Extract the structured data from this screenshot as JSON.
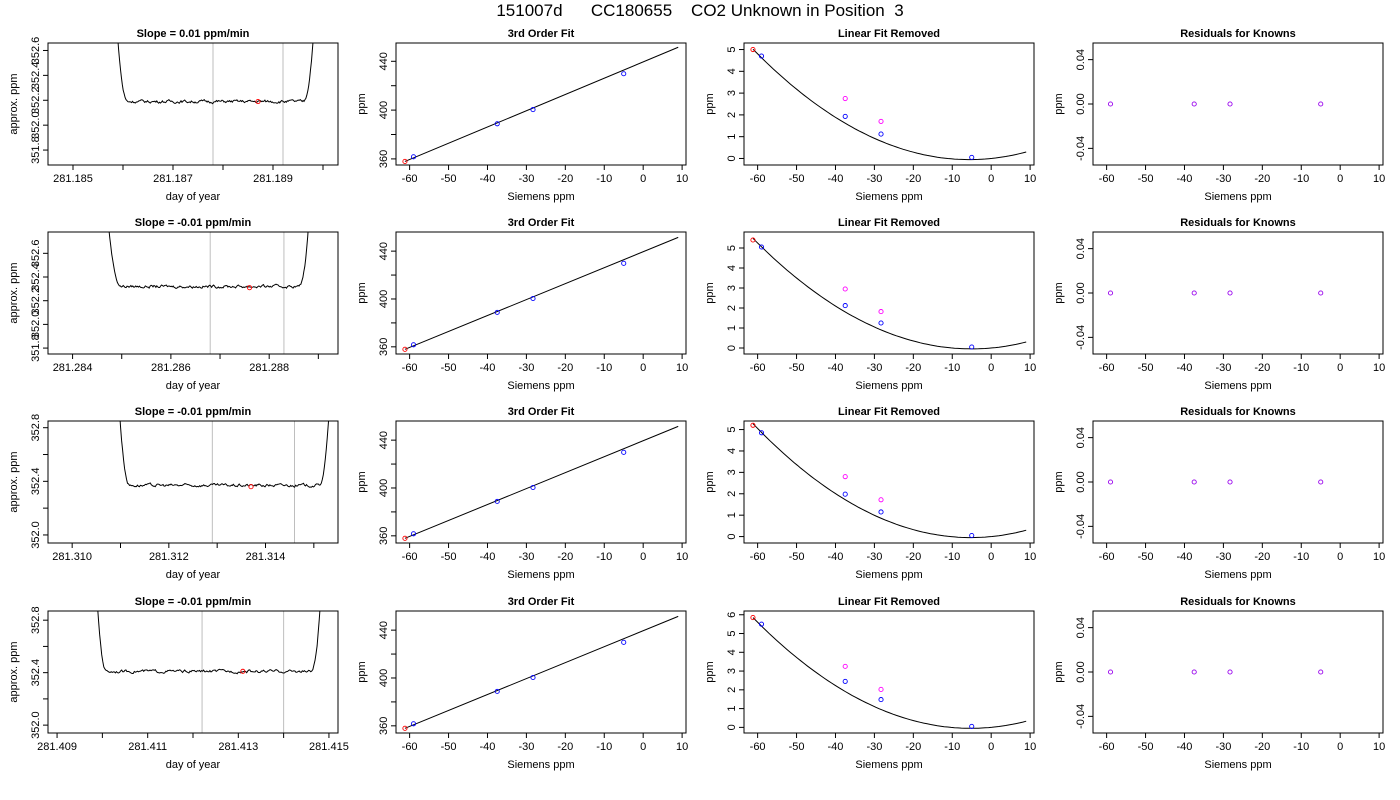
{
  "page_title": "151007d      CC180655    CO2 Unknown in Position  3",
  "colors": {
    "axis": "#000000",
    "frame": "#000000",
    "vline": "#bebebe",
    "known_point": "#0000ff",
    "unknown_point": "#ff00ff",
    "ref_point": "#ff0000",
    "residual_point": "#9900ee"
  },
  "chart_data": [
    {
      "row": 1,
      "panel": "timeseries",
      "type": "line",
      "title": "Slope =  0.01  ppm/min",
      "xlabel": "day of year",
      "ylabel": "approx. ppm",
      "xlim": [
        281.1845,
        281.1903
      ],
      "ylim": [
        351.68,
        352.66
      ],
      "xticks": [
        281.185,
        281.186,
        281.187,
        281.188,
        281.189,
        281.19
      ],
      "xtick_labels": [
        "281.185",
        "",
        "281.187",
        "",
        "281.189",
        ""
      ],
      "yticks": [
        351.8,
        352.0,
        352.2,
        352.4,
        352.6
      ],
      "ytick_labels": [
        "351.8",
        "352.0",
        "352.2",
        "352.4",
        "352.6"
      ],
      "plateau": 352.19,
      "x_start": 281.1858,
      "x_end": 281.1899,
      "rise_end_left": 281.1861,
      "rise_start_right": 281.1896,
      "vlines": [
        281.1878,
        281.1892
      ],
      "marker_x": 281.1887,
      "marker_y": 352.19
    },
    {
      "row": 1,
      "panel": "fit",
      "type": "scatter",
      "title": "3rd Order Fit",
      "xlabel": "Siemens ppm",
      "ylabel": "ppm",
      "xlim": [
        -63.5,
        11
      ],
      "ylim": [
        355,
        455
      ],
      "xticks": [
        -60,
        -50,
        -40,
        -30,
        -20,
        -10,
        0,
        10
      ],
      "xtick_labels": [
        "-60",
        "-50",
        "-40",
        "-30",
        "-20",
        "-10",
        "0",
        "10"
      ],
      "yticks": [
        360,
        380,
        400,
        420,
        440
      ],
      "ytick_labels": [
        "360",
        "",
        "400",
        "",
        "440"
      ],
      "line": {
        "x": [
          -61.2,
          9
        ],
        "y": [
          357.9,
          451.5
        ]
      },
      "knowns": [
        {
          "x": -59,
          "y": 361.7
        },
        {
          "x": -37.5,
          "y": 388.8
        },
        {
          "x": -28.3,
          "y": 400.4
        },
        {
          "x": -5,
          "y": 429.8
        }
      ],
      "reference": [
        {
          "x": -61.2,
          "y": 357.9
        }
      ]
    },
    {
      "row": 1,
      "panel": "linear_removed",
      "type": "scatter",
      "title": "Linear Fit Removed",
      "xlabel": "Siemens ppm",
      "ylabel": "ppm",
      "xlim": [
        -63.5,
        11
      ],
      "ylim": [
        -0.3,
        5.3
      ],
      "xticks": [
        -60,
        -50,
        -40,
        -30,
        -20,
        -10,
        0,
        10
      ],
      "xtick_labels": [
        "-60",
        "-50",
        "-40",
        "-30",
        "-20",
        "-10",
        "0",
        "10"
      ],
      "yticks": [
        0,
        1,
        2,
        3,
        4,
        5
      ],
      "ytick_labels": [
        "0",
        "1",
        "2",
        "3",
        "4",
        "5"
      ],
      "curve_coeffs": [
        0,
        0.0184,
        0.00164
      ],
      "knowns": [
        {
          "x": -59,
          "y": 4.7
        },
        {
          "x": -37.5,
          "y": 1.93
        },
        {
          "x": -28.3,
          "y": 1.12
        },
        {
          "x": -5,
          "y": 0.05
        }
      ],
      "unknowns": [
        {
          "x": -37.5,
          "y": 2.75
        },
        {
          "x": -28.3,
          "y": 1.7
        }
      ],
      "reference": [
        {
          "x": -61.2,
          "y": 5.0
        }
      ]
    },
    {
      "row": 1,
      "panel": "residuals",
      "type": "scatter",
      "title": "Residuals for Knowns",
      "xlabel": "Siemens ppm",
      "ylabel": "ppm",
      "xlim": [
        -63.5,
        11
      ],
      "ylim": [
        -0.055,
        0.055
      ],
      "xticks": [
        -60,
        -50,
        -40,
        -30,
        -20,
        -10,
        0,
        10
      ],
      "xtick_labels": [
        "-60",
        "-50",
        "-40",
        "-30",
        "-20",
        "-10",
        "0",
        "10"
      ],
      "yticks": [
        -0.04,
        0,
        0.04
      ],
      "ytick_labels": [
        "-0.04",
        "0.00",
        "0.04"
      ],
      "points": [
        {
          "x": -59,
          "y": 0
        },
        {
          "x": -37.5,
          "y": 0
        },
        {
          "x": -28.3,
          "y": 0
        },
        {
          "x": -5,
          "y": 0
        }
      ]
    },
    {
      "row": 2,
      "panel": "timeseries",
      "type": "line",
      "title": "Slope =  -0.01  ppm/min",
      "xlabel": "day of year",
      "ylabel": "approx. ppm",
      "xlim": [
        281.2835,
        281.2894
      ],
      "ylim": [
        351.75,
        352.78
      ],
      "xticks": [
        281.284,
        281.285,
        281.286,
        281.287,
        281.288,
        281.289
      ],
      "xtick_labels": [
        "281.284",
        "",
        "281.286",
        "",
        "281.288",
        ""
      ],
      "yticks": [
        351.8,
        352.0,
        352.2,
        352.4,
        352.6
      ],
      "ytick_labels": [
        "351.8",
        "352.0",
        "352.2",
        "352.4",
        "352.6"
      ],
      "plateau": 352.32,
      "x_start": 281.2846,
      "x_end": 281.2889,
      "rise_end_left": 281.285,
      "rise_start_right": 281.2886,
      "vlines": [
        281.2868,
        281.2883
      ],
      "marker_x": 281.2876,
      "marker_y": 352.31
    },
    {
      "row": 2,
      "panel": "fit",
      "type": "scatter",
      "title": "3rd Order Fit",
      "xlabel": "Siemens ppm",
      "ylabel": "ppm",
      "xlim": [
        -63.5,
        11
      ],
      "ylim": [
        354,
        456
      ],
      "xticks": [
        -60,
        -50,
        -40,
        -30,
        -20,
        -10,
        0,
        10
      ],
      "xtick_labels": [
        "-60",
        "-50",
        "-40",
        "-30",
        "-20",
        "-10",
        "0",
        "10"
      ],
      "yticks": [
        360,
        380,
        400,
        420,
        440
      ],
      "ytick_labels": [
        "360",
        "",
        "400",
        "",
        "440"
      ],
      "line": {
        "x": [
          -61.2,
          9
        ],
        "y": [
          357.9,
          451.5
        ]
      },
      "knowns": [
        {
          "x": -59,
          "y": 361.7
        },
        {
          "x": -37.5,
          "y": 388.8
        },
        {
          "x": -28.3,
          "y": 400.4
        },
        {
          "x": -5,
          "y": 429.8
        }
      ],
      "reference": [
        {
          "x": -61.2,
          "y": 357.9
        }
      ]
    },
    {
      "row": 2,
      "panel": "linear_removed",
      "type": "scatter",
      "title": "Linear Fit Removed",
      "xlabel": "Siemens ppm",
      "ylabel": "ppm",
      "xlim": [
        -63.5,
        11
      ],
      "ylim": [
        -0.3,
        5.8
      ],
      "xticks": [
        -60,
        -50,
        -40,
        -30,
        -20,
        -10,
        0,
        10
      ],
      "xtick_labels": [
        "-60",
        "-50",
        "-40",
        "-30",
        "-20",
        "-10",
        "0",
        "10"
      ],
      "yticks": [
        0,
        1,
        2,
        3,
        4,
        5
      ],
      "ytick_labels": [
        "0",
        "1",
        "2",
        "3",
        "4",
        "5"
      ],
      "curve_coeffs": [
        0,
        0.0175,
        0.00175
      ],
      "knowns": [
        {
          "x": -59,
          "y": 5.05
        },
        {
          "x": -37.5,
          "y": 2.12
        },
        {
          "x": -28.3,
          "y": 1.25
        },
        {
          "x": -5,
          "y": 0.05
        }
      ],
      "unknowns": [
        {
          "x": -37.5,
          "y": 2.95
        },
        {
          "x": -28.3,
          "y": 1.82
        }
      ],
      "reference": [
        {
          "x": -61.2,
          "y": 5.4
        }
      ]
    },
    {
      "row": 2,
      "panel": "residuals",
      "type": "scatter",
      "title": "Residuals for Knowns",
      "xlabel": "Siemens ppm",
      "ylabel": "ppm",
      "xlim": [
        -63.5,
        11
      ],
      "ylim": [
        -0.055,
        0.055
      ],
      "xticks": [
        -60,
        -50,
        -40,
        -30,
        -20,
        -10,
        0,
        10
      ],
      "xtick_labels": [
        "-60",
        "-50",
        "-40",
        "-30",
        "-20",
        "-10",
        "0",
        "10"
      ],
      "yticks": [
        -0.04,
        0,
        0.04
      ],
      "ytick_labels": [
        "-0.04",
        "0.00",
        "0.04"
      ],
      "points": [
        {
          "x": -59,
          "y": 0
        },
        {
          "x": -37.5,
          "y": 0
        },
        {
          "x": -28.3,
          "y": 0
        },
        {
          "x": -5,
          "y": 0
        }
      ]
    },
    {
      "row": 3,
      "panel": "timeseries",
      "type": "line",
      "title": "Slope =  -0.01  ppm/min",
      "xlabel": "day of year",
      "ylabel": "approx. ppm",
      "xlim": [
        281.3095,
        281.3155
      ],
      "ylim": [
        351.94,
        352.85
      ],
      "xticks": [
        281.31,
        281.311,
        281.312,
        281.313,
        281.314,
        281.315
      ],
      "xtick_labels": [
        "281.310",
        "",
        "281.312",
        "",
        "281.314",
        ""
      ],
      "yticks": [
        352.0,
        352.2,
        352.4,
        352.6,
        352.8
      ],
      "ytick_labels": [
        "352.0",
        "",
        "352.4",
        "",
        "352.8"
      ],
      "plateau": 352.37,
      "x_start": 281.3109,
      "x_end": 281.3154,
      "rise_end_left": 281.3112,
      "rise_start_right": 281.3151,
      "vlines": [
        281.3129,
        281.3146
      ],
      "marker_x": 281.3137,
      "marker_y": 352.36
    },
    {
      "row": 3,
      "panel": "fit",
      "type": "scatter",
      "title": "3rd Order Fit",
      "xlabel": "Siemens ppm",
      "ylabel": "ppm",
      "xlim": [
        -63.5,
        11
      ],
      "ylim": [
        354,
        456
      ],
      "xticks": [
        -60,
        -50,
        -40,
        -30,
        -20,
        -10,
        0,
        10
      ],
      "xtick_labels": [
        "-60",
        "-50",
        "-40",
        "-30",
        "-20",
        "-10",
        "0",
        "10"
      ],
      "yticks": [
        360,
        380,
        400,
        420,
        440
      ],
      "ytick_labels": [
        "360",
        "",
        "400",
        "",
        "440"
      ],
      "line": {
        "x": [
          -61.2,
          9
        ],
        "y": [
          357.9,
          451.5
        ]
      },
      "knowns": [
        {
          "x": -59,
          "y": 361.7
        },
        {
          "x": -37.5,
          "y": 388.8
        },
        {
          "x": -28.3,
          "y": 400.4
        },
        {
          "x": -5,
          "y": 429.8
        }
      ],
      "reference": [
        {
          "x": -61.2,
          "y": 357.9
        }
      ]
    },
    {
      "row": 3,
      "panel": "linear_removed",
      "type": "scatter",
      "title": "Linear Fit Removed",
      "xlabel": "Siemens ppm",
      "ylabel": "ppm",
      "xlim": [
        -63.5,
        11
      ],
      "ylim": [
        -0.3,
        5.4
      ],
      "xticks": [
        -60,
        -50,
        -40,
        -30,
        -20,
        -10,
        0,
        10
      ],
      "xtick_labels": [
        "-60",
        "-50",
        "-40",
        "-30",
        "-20",
        "-10",
        "0",
        "10"
      ],
      "yticks": [
        0,
        1,
        2,
        3,
        4,
        5
      ],
      "ytick_labels": [
        "0",
        "1",
        "2",
        "3",
        "4",
        "5"
      ],
      "curve_coeffs": [
        0,
        0.0178,
        0.0017
      ],
      "knowns": [
        {
          "x": -59,
          "y": 4.85
        },
        {
          "x": -37.5,
          "y": 1.98
        },
        {
          "x": -28.3,
          "y": 1.15
        },
        {
          "x": -5,
          "y": 0.05
        }
      ],
      "unknowns": [
        {
          "x": -37.5,
          "y": 2.8
        },
        {
          "x": -28.3,
          "y": 1.72
        }
      ],
      "reference": [
        {
          "x": -61.2,
          "y": 5.2
        }
      ]
    },
    {
      "row": 3,
      "panel": "residuals",
      "type": "scatter",
      "title": "Residuals for Knowns",
      "xlabel": "Siemens ppm",
      "ylabel": "ppm",
      "xlim": [
        -63.5,
        11
      ],
      "ylim": [
        -0.055,
        0.055
      ],
      "xticks": [
        -60,
        -50,
        -40,
        -30,
        -20,
        -10,
        0,
        10
      ],
      "xtick_labels": [
        "-60",
        "-50",
        "-40",
        "-30",
        "-20",
        "-10",
        "0",
        "10"
      ],
      "yticks": [
        -0.04,
        0,
        0.04
      ],
      "ytick_labels": [
        "-0.04",
        "0.00",
        "0.04"
      ],
      "points": [
        {
          "x": -59,
          "y": 0
        },
        {
          "x": -37.5,
          "y": 0
        },
        {
          "x": -28.3,
          "y": 0
        },
        {
          "x": -5,
          "y": 0
        }
      ]
    },
    {
      "row": 4,
      "panel": "timeseries",
      "type": "line",
      "title": "Slope =  -0.01  ppm/min",
      "xlabel": "day of year",
      "ylabel": "approx. ppm",
      "xlim": [
        281.4088,
        281.4152
      ],
      "ylim": [
        351.94,
        352.87
      ],
      "xticks": [
        281.409,
        281.41,
        281.411,
        281.412,
        281.413,
        281.414,
        281.415
      ],
      "xtick_labels": [
        "281.409",
        "",
        "281.411",
        "",
        "281.413",
        "",
        "281.415"
      ],
      "yticks": [
        352.0,
        352.2,
        352.4,
        352.6,
        352.8
      ],
      "ytick_labels": [
        "352.0",
        "",
        "352.4",
        "",
        "352.8"
      ],
      "plateau": 352.41,
      "x_start": 281.4098,
      "x_end": 281.4149,
      "rise_end_left": 281.4101,
      "rise_start_right": 281.4146,
      "vlines": [
        281.4122,
        281.414
      ],
      "marker_x": 281.4131,
      "marker_y": 352.41
    },
    {
      "row": 4,
      "panel": "fit",
      "type": "scatter",
      "title": "3rd Order Fit",
      "xlabel": "Siemens ppm",
      "ylabel": "ppm",
      "xlim": [
        -63.5,
        11
      ],
      "ylim": [
        354,
        456
      ],
      "xticks": [
        -60,
        -50,
        -40,
        -30,
        -20,
        -10,
        0,
        10
      ],
      "xtick_labels": [
        "-60",
        "-50",
        "-40",
        "-30",
        "-20",
        "-10",
        "0",
        "10"
      ],
      "yticks": [
        360,
        380,
        400,
        420,
        440
      ],
      "ytick_labels": [
        "360",
        "",
        "400",
        "",
        "440"
      ],
      "line": {
        "x": [
          -61.2,
          9
        ],
        "y": [
          357.9,
          451.5
        ]
      },
      "knowns": [
        {
          "x": -59,
          "y": 361.7
        },
        {
          "x": -37.5,
          "y": 388.8
        },
        {
          "x": -28.3,
          "y": 400.4
        },
        {
          "x": -5,
          "y": 429.8
        }
      ],
      "reference": [
        {
          "x": -61.2,
          "y": 357.9
        }
      ]
    },
    {
      "row": 4,
      "panel": "linear_removed",
      "type": "scatter",
      "title": "Linear Fit Removed",
      "xlabel": "Siemens ppm",
      "ylabel": "ppm",
      "xlim": [
        -63.5,
        11
      ],
      "ylim": [
        -0.3,
        6.2
      ],
      "xticks": [
        -60,
        -50,
        -40,
        -30,
        -20,
        -10,
        0,
        10
      ],
      "xtick_labels": [
        "-60",
        "-50",
        "-40",
        "-30",
        "-20",
        "-10",
        "0",
        "10"
      ],
      "yticks": [
        0,
        1,
        2,
        3,
        4,
        5,
        6
      ],
      "ytick_labels": [
        "0",
        "1",
        "2",
        "3",
        "4",
        "5",
        "6"
      ],
      "curve_coeffs": [
        0,
        0.0195,
        0.00188
      ],
      "knowns": [
        {
          "x": -59,
          "y": 5.5
        },
        {
          "x": -37.5,
          "y": 2.45
        },
        {
          "x": -28.3,
          "y": 1.48
        },
        {
          "x": -5,
          "y": 0.05
        }
      ],
      "unknowns": [
        {
          "x": -37.5,
          "y": 3.25
        },
        {
          "x": -28.3,
          "y": 2.02
        }
      ],
      "reference": [
        {
          "x": -61.2,
          "y": 5.85
        }
      ]
    },
    {
      "row": 4,
      "panel": "residuals",
      "type": "scatter",
      "title": "Residuals for Knowns",
      "xlabel": "Siemens ppm",
      "ylabel": "ppm",
      "xlim": [
        -63.5,
        11
      ],
      "ylim": [
        -0.055,
        0.055
      ],
      "xticks": [
        -60,
        -50,
        -40,
        -30,
        -20,
        -10,
        0,
        10
      ],
      "xtick_labels": [
        "-60",
        "-50",
        "-40",
        "-30",
        "-20",
        "-10",
        "0",
        "10"
      ],
      "yticks": [
        -0.04,
        0,
        0.04
      ],
      "ytick_labels": [
        "-0.04",
        "0.00",
        "0.04"
      ],
      "points": [
        {
          "x": -59,
          "y": 0
        },
        {
          "x": -37.5,
          "y": 0
        },
        {
          "x": -28.3,
          "y": 0
        },
        {
          "x": -5,
          "y": 0
        }
      ]
    }
  ]
}
